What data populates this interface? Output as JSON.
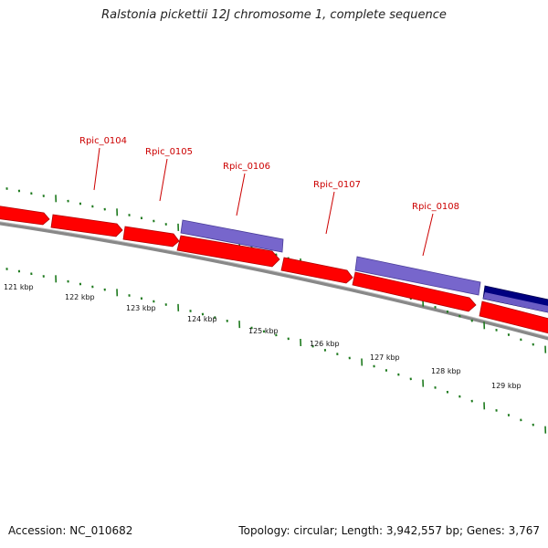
{
  "title": "Ralstonia pickettii 12J chromosome 1, complete sequence",
  "footer": {
    "accession": "Accession: NC_010682",
    "summary": "Topology: circular; Length: 3,942,557 bp; Genes: 3,767"
  },
  "colors": {
    "forward_gene": "#ff0000",
    "forward_gene_dark": "#b00000",
    "reverse_gene": "#7766cc",
    "reverse_gene_dark": "#4a3d99",
    "reverse_gene_strong": "#000080",
    "backbone": "#888888",
    "ticks": "#1e7a1e",
    "label": "#cc0000"
  },
  "gene_labels": [
    "Rpic_0104",
    "Rpic_0105",
    "Rpic_0106",
    "Rpic_0107",
    "Rpic_0108"
  ],
  "kbp_labels": [
    "121 kbp",
    "122 kbp",
    "123 kbp",
    "124 kbp",
    "125 kbp",
    "126 kbp",
    "127 kbp",
    "128 kbp",
    "129 kbp"
  ]
}
